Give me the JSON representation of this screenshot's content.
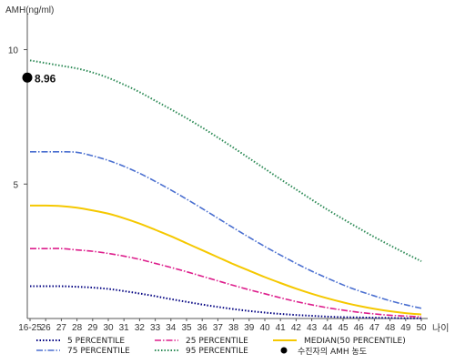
{
  "chart_data": {
    "type": "line",
    "xlabel": "나이",
    "ylabel": "AMH(ng/ml)",
    "x_ticks": [
      "16-25",
      "26",
      "27",
      "28",
      "29",
      "30",
      "31",
      "32",
      "33",
      "34",
      "35",
      "36",
      "37",
      "38",
      "39",
      "40",
      "41",
      "42",
      "43",
      "44",
      "45",
      "46",
      "47",
      "48",
      "49",
      "50"
    ],
    "ylim": [
      0,
      11
    ],
    "y_ticks": [
      5,
      10
    ],
    "series": [
      {
        "name": "5 PERCENTILE",
        "color": "#000080",
        "style": "dotted",
        "values": [
          1.2,
          1.2,
          1.2,
          1.18,
          1.15,
          1.1,
          1.02,
          0.93,
          0.83,
          0.72,
          0.62,
          0.52,
          0.43,
          0.35,
          0.28,
          0.22,
          0.17,
          0.13,
          0.1,
          0.07,
          0.05,
          0.04,
          0.03,
          0.02,
          0.01,
          0.01
        ]
      },
      {
        "name": "25 PERCENTILE",
        "color": "#dd1e8c",
        "style": "dashdot",
        "values": [
          2.6,
          2.6,
          2.6,
          2.55,
          2.5,
          2.42,
          2.32,
          2.2,
          2.05,
          1.9,
          1.74,
          1.57,
          1.4,
          1.23,
          1.07,
          0.92,
          0.77,
          0.63,
          0.51,
          0.4,
          0.31,
          0.23,
          0.17,
          0.12,
          0.09,
          0.06
        ]
      },
      {
        "name": "MEDIAN(50 PERCENTILE)",
        "color": "#f5c800",
        "style": "solid",
        "values": [
          4.2,
          4.2,
          4.18,
          4.12,
          4.02,
          3.9,
          3.73,
          3.53,
          3.3,
          3.06,
          2.8,
          2.54,
          2.28,
          2.02,
          1.78,
          1.54,
          1.32,
          1.11,
          0.92,
          0.75,
          0.6,
          0.47,
          0.36,
          0.27,
          0.2,
          0.15
        ]
      },
      {
        "name": "75 PERCENTILE",
        "color": "#4a6fd0",
        "style": "dashdot",
        "values": [
          6.2,
          6.2,
          6.2,
          6.18,
          6.05,
          5.88,
          5.66,
          5.4,
          5.1,
          4.78,
          4.44,
          4.09,
          3.73,
          3.37,
          3.02,
          2.68,
          2.36,
          2.05,
          1.76,
          1.5,
          1.25,
          1.03,
          0.84,
          0.66,
          0.51,
          0.38
        ]
      },
      {
        "name": "95 PERCENTILE",
        "color": "#2e8b57",
        "style": "dotted",
        "values": [
          9.6,
          9.5,
          9.4,
          9.3,
          9.15,
          8.95,
          8.7,
          8.42,
          8.1,
          7.78,
          7.45,
          7.1,
          6.73,
          6.35,
          5.96,
          5.57,
          5.18,
          4.8,
          4.42,
          4.05,
          3.7,
          3.36,
          3.03,
          2.72,
          2.42,
          2.13
        ]
      }
    ],
    "highlight_point": {
      "name": "수진자의 AMH 농도",
      "x": "16-25",
      "y": 8.96,
      "label": "8.96",
      "color": "#000000"
    },
    "legend_position": "bottom",
    "grid": false
  }
}
